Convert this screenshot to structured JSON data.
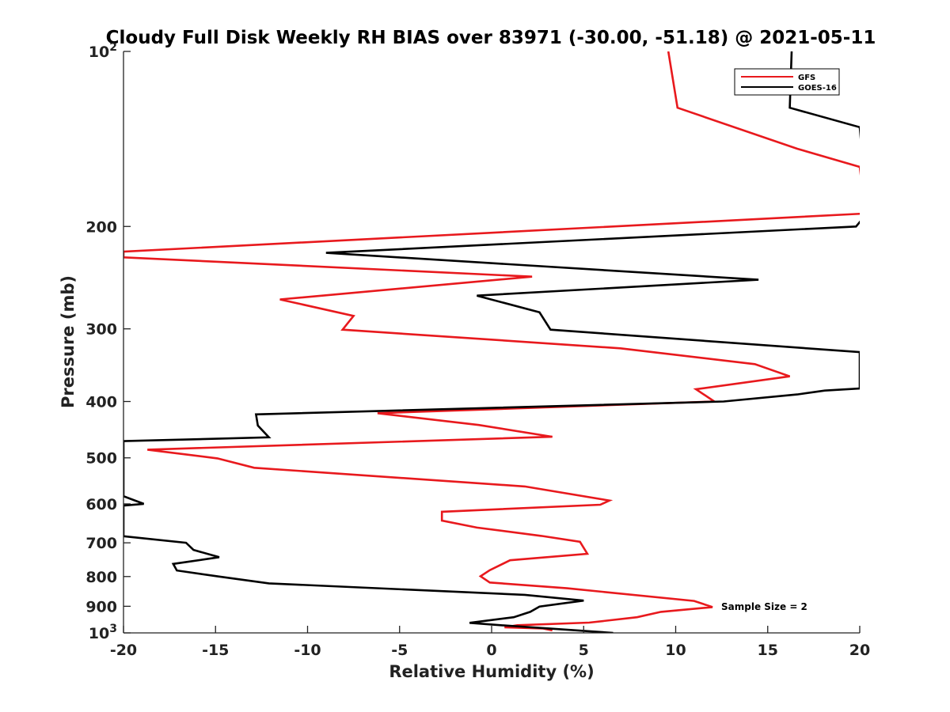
{
  "chart_data": {
    "type": "line",
    "title": "Cloudy Full Disk Weekly RH BIAS over 83971 (-30.00, -51.18) @ 2021-05-11",
    "xlabel": "Relative Humidity (%)",
    "ylabel": "Pressure (mb)",
    "xlim": [
      -20,
      20
    ],
    "ylim": [
      100,
      1000
    ],
    "y_scale": "log",
    "y_reversed": true,
    "grid": false,
    "legend_position": "top-right",
    "x_ticks": [
      {
        "value": -20,
        "label": "-20"
      },
      {
        "value": -15,
        "label": "-15"
      },
      {
        "value": -10,
        "label": "-10"
      },
      {
        "value": -5,
        "label": "-5"
      },
      {
        "value": 0,
        "label": "0"
      },
      {
        "value": 5,
        "label": "5"
      },
      {
        "value": 10,
        "label": "10"
      },
      {
        "value": 15,
        "label": "15"
      },
      {
        "value": 20,
        "label": "20"
      }
    ],
    "y_ticks": [
      {
        "value": 100,
        "base": "10",
        "exp": "2"
      },
      {
        "value": 200,
        "base": "200",
        "exp": ""
      },
      {
        "value": 300,
        "base": "300",
        "exp": ""
      },
      {
        "value": 400,
        "base": "400",
        "exp": ""
      },
      {
        "value": 500,
        "base": "500",
        "exp": ""
      },
      {
        "value": 600,
        "base": "600",
        "exp": ""
      },
      {
        "value": 700,
        "base": "700",
        "exp": ""
      },
      {
        "value": 800,
        "base": "800",
        "exp": ""
      },
      {
        "value": 900,
        "base": "900",
        "exp": ""
      },
      {
        "value": 1000,
        "base": "10",
        "exp": "3"
      }
    ],
    "series": [
      {
        "name": "GFS",
        "color": "#e8191d",
        "points": [
          [
            9.6,
            100
          ],
          [
            10.1,
            125
          ],
          [
            16.6,
            147
          ],
          [
            20.0,
            158
          ],
          [
            20.3,
            190
          ],
          [
            -20.0,
            221
          ],
          [
            -20.0,
            226
          ],
          [
            2.2,
            244
          ],
          [
            -11.5,
            267
          ],
          [
            -7.5,
            285
          ],
          [
            -8.1,
            301
          ],
          [
            7.0,
            324
          ],
          [
            14.3,
            345
          ],
          [
            16.2,
            362
          ],
          [
            11.1,
            381
          ],
          [
            12.1,
            400
          ],
          [
            -6.2,
            419
          ],
          [
            -0.7,
            439
          ],
          [
            3.3,
            460
          ],
          [
            -18.7,
            484
          ],
          [
            -14.9,
            501
          ],
          [
            -12.9,
            520
          ],
          [
            1.8,
            560
          ],
          [
            6.4,
            592
          ],
          [
            5.9,
            602
          ],
          [
            -2.7,
            619
          ],
          [
            -2.7,
            641
          ],
          [
            -0.8,
            659
          ],
          [
            2.7,
            681
          ],
          [
            4.8,
            697
          ],
          [
            5.2,
            731
          ],
          [
            1.0,
            750
          ],
          [
            -0.1,
            780
          ],
          [
            -0.6,
            799
          ],
          [
            -0.1,
            819
          ],
          [
            4.1,
            838
          ],
          [
            11.0,
            881
          ],
          [
            12.0,
            903
          ],
          [
            9.2,
            920
          ],
          [
            7.9,
            940
          ],
          [
            5.3,
            960
          ],
          [
            1.4,
            970
          ],
          [
            0.7,
            978
          ],
          [
            2.8,
            983
          ],
          [
            3.3,
            990
          ]
        ]
      },
      {
        "name": "GOES-16",
        "color": "#000000",
        "points": [
          [
            16.3,
            100
          ],
          [
            16.2,
            125
          ],
          [
            20.0,
            135
          ],
          [
            20.4,
            190
          ],
          [
            19.8,
            200
          ],
          [
            -9.0,
            222
          ],
          [
            14.5,
            247
          ],
          [
            -0.8,
            263
          ],
          [
            2.6,
            281
          ],
          [
            3.2,
            301
          ],
          [
            20.0,
            329
          ],
          [
            20.0,
            380
          ],
          [
            18.1,
            383
          ],
          [
            16.6,
            389
          ],
          [
            12.6,
            400
          ],
          [
            -12.8,
            421
          ],
          [
            -12.7,
            440
          ],
          [
            -12.1,
            461
          ],
          [
            -20.0,
            468
          ],
          [
            -20.0,
            582
          ],
          [
            -18.9,
            600
          ],
          [
            -20.0,
            604
          ],
          [
            -20.0,
            682
          ],
          [
            -16.6,
            700
          ],
          [
            -16.2,
            720
          ],
          [
            -14.8,
            741
          ],
          [
            -17.3,
            761
          ],
          [
            -17.1,
            781
          ],
          [
            -14.8,
            800
          ],
          [
            -12.1,
            822
          ],
          [
            1.8,
            860
          ],
          [
            5.0,
            880
          ],
          [
            2.6,
            901
          ],
          [
            2.1,
            920
          ],
          [
            1.2,
            940
          ],
          [
            -1.2,
            961
          ],
          [
            0.5,
            970
          ],
          [
            2.8,
            981
          ],
          [
            6.6,
            1000
          ]
        ]
      }
    ],
    "annotations": [
      {
        "text": "Sample Size = 2",
        "x": 12.5,
        "y": 905
      }
    ]
  }
}
